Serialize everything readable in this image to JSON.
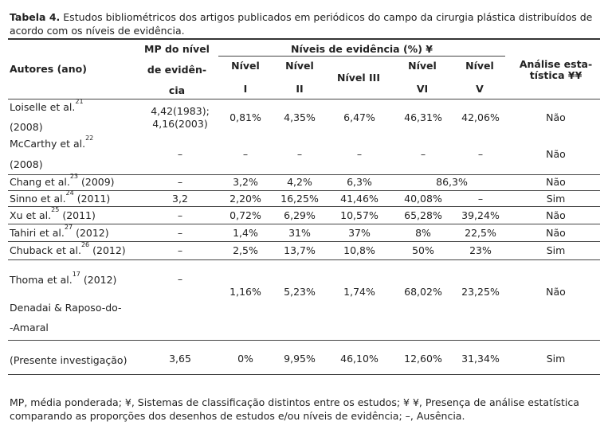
{
  "caption": {
    "label": "Tabela 4.",
    "text": "Estudos bibliométricos dos artigos publicados em periódicos do campo da cirurgia plástica distribuídos de acordo com os níveis de evidência."
  },
  "header": {
    "authors": "Autores (ano)",
    "mp_line1": "MP do nível",
    "mp_line2": "de evidên-",
    "mp_line3": "cia",
    "levels_group": "Níveis de evidência (%) ¥",
    "nivel": "Nível",
    "level_1": "I",
    "level_2": "II",
    "level_3": "Nível III",
    "level_6": "VI",
    "level_5": "V",
    "analysis_line1": "Análise esta-",
    "analysis_line2": "tística ¥¥"
  },
  "rows": [
    {
      "author": "Loiselle et al.",
      "ref": "21",
      "year": "(2008)",
      "mp_1": "4,42(1983);",
      "mp_2": "4,16(2003)",
      "n1": "0,81%",
      "n2": "4,35%",
      "n3": "6,47%",
      "n6": "46,31%",
      "n5": "42,06%",
      "analysis": "Não"
    },
    {
      "author": "McCarthy et al.",
      "ref": "22",
      "year": "(2008)",
      "mp": "–",
      "n1": "–",
      "n2": "–",
      "n3": "–",
      "n6": "–",
      "n5": "–",
      "analysis": "Não"
    },
    {
      "author": "Chang et al.",
      "ref": "23",
      "year": "(2009)",
      "mp": "–",
      "n1": "3,2%",
      "n2": "4,2%",
      "n3": "6,3%",
      "n65": "86,3%",
      "analysis": "Não"
    },
    {
      "author": "Sinno et al.",
      "ref": "24",
      "year": "(2011)",
      "mp": "3,2",
      "n1": "2,20%",
      "n2": "16,25%",
      "n3": "41,46%",
      "n6": "40,08%",
      "n5": "–",
      "analysis": "Sim"
    },
    {
      "author": "Xu et al.",
      "ref": "25",
      "year": "(2011)",
      "mp": "–",
      "n1": "0,72%",
      "n2": "6,29%",
      "n3": "10,57%",
      "n6": "65,28%",
      "n5": "39,24%",
      "analysis": "Não"
    },
    {
      "author": "Tahiri et al.",
      "ref": "27",
      "year": "(2012)",
      "mp": "–",
      "n1": "1,4%",
      "n2": "31%",
      "n3": "37%",
      "n6": "8%",
      "n5": "22,5%",
      "analysis": "Não"
    },
    {
      "author": "Chuback et al.",
      "ref": "26",
      "year": "(2012)",
      "mp": "–",
      "n1": "2,5%",
      "n2": "13,7%",
      "n3": "10,8%",
      "n6": "50%",
      "n5": "23%",
      "analysis": "Sim"
    },
    {
      "author": "Thoma et al.",
      "ref": "17",
      "year": "(2012)",
      "mp": "–",
      "n1": "1,16%",
      "n2": "5,23%",
      "n3": "1,74%",
      "n6": "68,02%",
      "n5": "23,25%",
      "analysis": "Não"
    },
    {
      "author_1": "Denadai & Raposo-do-",
      "author_2": "-Amaral",
      "author_3": "(Presente investigação)",
      "mp": "3,65",
      "n1": "0%",
      "n2": "9,95%",
      "n3": "46,10%",
      "n6": "12,60%",
      "n5": "31,34%",
      "analysis": "Sim"
    }
  ],
  "footnote": "MP, média ponderada; ¥, Sistemas de classificação distintos entre os estudos; ¥ ¥, Presença de análise estatística comparando as proporções dos desenhos de estudos e/ou níveis de evidência; –, Ausência."
}
